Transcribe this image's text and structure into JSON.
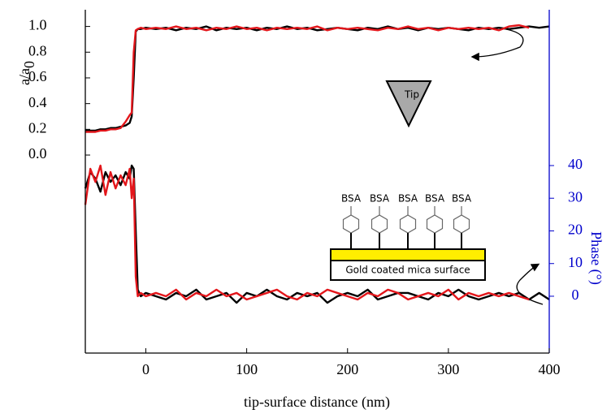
{
  "chart_data": {
    "type": "line",
    "xlabel": "tip-surface distance (nm)",
    "ylabel": "a/a",
    "ylabel_subscript": "0",
    "y2label": "Phase (°)",
    "xlim": [
      -60,
      400
    ],
    "xticks": [
      0,
      100,
      200,
      300,
      400
    ],
    "ylim": [
      -1.54,
      1.13
    ],
    "yticks": [
      {
        "value": 0,
        "label": "0.0"
      },
      0.2,
      0.4,
      0.6,
      0.8,
      {
        "value": 1,
        "label": "1.0"
      }
    ],
    "y2lim": [
      -17.4,
      87.7
    ],
    "y2ticks": [
      0,
      10,
      20,
      30,
      40
    ],
    "y2color": "#0000cc",
    "x": [
      -60,
      -55,
      -50,
      -45,
      -40,
      -35,
      -30,
      -25,
      -20,
      -16,
      -14,
      -12,
      -10,
      -8,
      -5,
      0,
      10,
      20,
      30,
      40,
      50,
      60,
      70,
      80,
      90,
      100,
      110,
      120,
      130,
      140,
      150,
      160,
      170,
      180,
      190,
      200,
      210,
      220,
      230,
      240,
      250,
      260,
      270,
      280,
      290,
      300,
      310,
      320,
      330,
      340,
      350,
      360,
      370,
      380,
      390,
      400
    ],
    "series": [
      {
        "color": "#000000",
        "axis": "y",
        "values": [
          0.19,
          0.19,
          0.19,
          0.2,
          0.2,
          0.21,
          0.21,
          0.22,
          0.23,
          0.25,
          0.3,
          0.6,
          0.96,
          0.98,
          0.98,
          0.99,
          0.98,
          0.99,
          0.97,
          0.99,
          0.98,
          1.0,
          0.97,
          0.99,
          0.98,
          0.99,
          0.97,
          0.99,
          0.98,
          1.0,
          0.98,
          0.99,
          0.97,
          0.98,
          0.99,
          0.98,
          0.97,
          0.99,
          0.98,
          1.0,
          0.98,
          0.99,
          0.97,
          0.99,
          0.98,
          0.99,
          0.98,
          0.97,
          0.99,
          0.98,
          0.99,
          0.98,
          0.99,
          1.0,
          0.99,
          1.0
        ]
      },
      {
        "color": "#e3161b",
        "axis": "y",
        "values": [
          0.18,
          0.18,
          0.18,
          0.19,
          0.19,
          0.2,
          0.2,
          0.21,
          0.26,
          0.31,
          0.33,
          0.8,
          0.97,
          0.98,
          0.99,
          0.98,
          0.99,
          0.98,
          1.0,
          0.98,
          0.99,
          0.97,
          0.99,
          0.98,
          1.0,
          0.98,
          0.99,
          0.97,
          0.99,
          0.98,
          0.99,
          0.98,
          1.0,
          0.97,
          0.99,
          0.98,
          0.99,
          0.98,
          0.97,
          0.99,
          0.98,
          1.0,
          0.98,
          0.99,
          0.97,
          0.99,
          0.98,
          0.99,
          0.98,
          0.99,
          0.97,
          1.0,
          1.01,
          0.99,
          null,
          null
        ]
      },
      {
        "color": "#000000",
        "axis": "y2",
        "values": [
          33,
          38,
          36,
          32,
          38,
          35,
          37,
          34,
          38,
          36,
          40,
          39,
          20,
          2,
          0,
          1,
          0,
          -1,
          1,
          0,
          2,
          -1,
          0,
          1,
          -2,
          1,
          0,
          2,
          0,
          -1,
          1,
          0,
          1,
          -2,
          0,
          1,
          0,
          2,
          -1,
          0,
          1,
          1,
          0,
          -1,
          1,
          0,
          2,
          0,
          -1,
          0,
          1,
          0,
          1,
          -1,
          1,
          -1
        ]
      },
      {
        "color": "#e3161b",
        "axis": "y2",
        "values": [
          28,
          39,
          35,
          40,
          31,
          38,
          33,
          37,
          34,
          39,
          30,
          36,
          6,
          0,
          1,
          0,
          1,
          0,
          2,
          -1,
          1,
          0,
          2,
          0,
          1,
          -1,
          0,
          1,
          2,
          0,
          -1,
          1,
          0,
          2,
          1,
          0,
          -1,
          1,
          0,
          2,
          1,
          -1,
          0,
          1,
          0,
          2,
          -1,
          1,
          0,
          1,
          0,
          1,
          0,
          -1,
          null,
          null
        ]
      }
    ],
    "annotations": {
      "tip": "Tip",
      "molecules": [
        "BSA",
        "BSA",
        "BSA",
        "BSA",
        "BSA"
      ],
      "surface": "Gold coated mica surface"
    }
  }
}
